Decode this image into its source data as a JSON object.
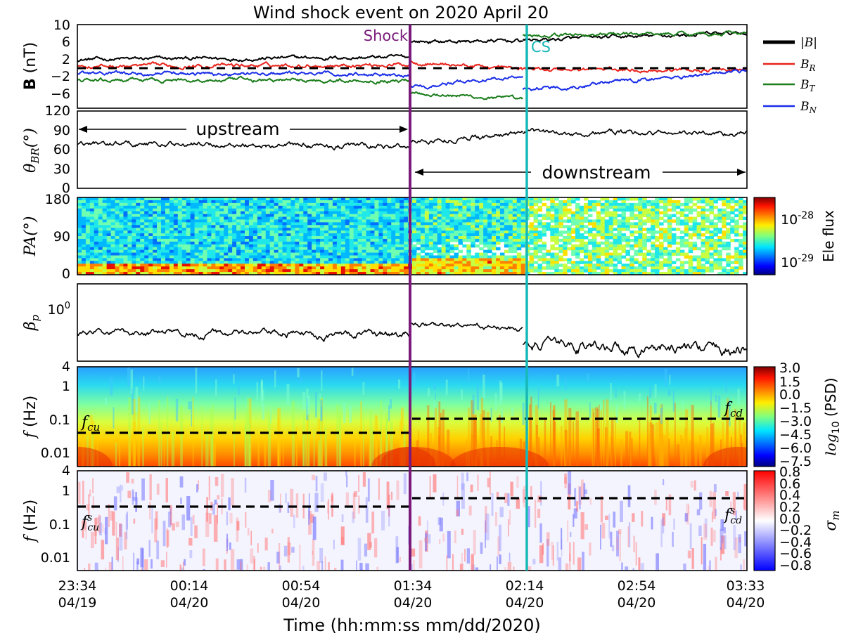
{
  "chart_data": {
    "title": "Wind shock event on 2020 April 20",
    "xlabel": "Time (hh:mm:ss mm/dd/2020)",
    "x_ticks": [
      {
        "time": "23:34",
        "date": "04/19"
      },
      {
        "time": "00:14",
        "date": "04/20"
      },
      {
        "time": "00:54",
        "date": "04/20"
      },
      {
        "time": "01:34",
        "date": "04/20"
      },
      {
        "time": "02:14",
        "date": "04/20"
      },
      {
        "time": "02:54",
        "date": "04/20"
      },
      {
        "time": "03:33",
        "date": "04/20"
      }
    ],
    "xlim_min_since_2334": [
      0,
      239
    ],
    "markers": [
      {
        "label": "Shock",
        "t_min": 119,
        "color": "#7a1a7a"
      },
      {
        "label": "CS",
        "t_min": 159,
        "color": "#17b8b8"
      }
    ],
    "panels": [
      {
        "id": "B",
        "type": "line",
        "ylabel": "B (nT)",
        "yticks": [
          "10",
          "6",
          "2",
          "−2",
          "−6"
        ],
        "yrange": [
          -8,
          10
        ],
        "legend": [
          "|B|",
          "B_R",
          "B_T",
          "B_N"
        ],
        "legend_placement": "right, outside",
        "zero_line": true,
        "series": [
          {
            "name": "|B|",
            "color": "#000000",
            "segments": [
              {
                "t": [
                  0,
                  119
                ],
                "level": [
                  2.5,
                  3.0
                ]
              },
              {
                "t": [
                  119,
                  159
                ],
                "level": [
                  6.3,
                  6.5
                ]
              },
              {
                "t": [
                  159,
                  239
                ],
                "level": [
                  6.6,
                  8.2
                ]
              }
            ]
          },
          {
            "name": "B_R",
            "color": "#e8231b",
            "segments": [
              {
                "t": [
                  0,
                  119
                ],
                "level": [
                  1.0,
                  1.4
                ]
              },
              {
                "t": [
                  119,
                  159
                ],
                "level": [
                  2.0,
                  0.4
                ]
              },
              {
                "t": [
                  159,
                  239
                ],
                "level": [
                  0.4,
                  0.2
                ]
              }
            ]
          },
          {
            "name": "B_T",
            "color": "#1b7d1b",
            "segments": [
              {
                "t": [
                  0,
                  119
                ],
                "level": [
                  -2.0,
                  -2.0
                ]
              },
              {
                "t": [
                  119,
                  159
                ],
                "level": [
                  -4.5,
                  -6.3
                ]
              },
              {
                "t": [
                  159,
                  239
                ],
                "level": [
                  7.6,
                  8.3
                ]
              }
            ]
          },
          {
            "name": "B_N",
            "color": "#1a2ee8",
            "segments": [
              {
                "t": [
                  0,
                  119
                ],
                "level": [
                  -0.5,
                  -0.7
                ]
              },
              {
                "t": [
                  119,
                  159
                ],
                "level": [
                  -3.5,
                  -1.0
                ]
              },
              {
                "t": [
                  159,
                  239
                ],
                "level": [
                  -4.0,
                  0.0
                ]
              }
            ]
          }
        ]
      },
      {
        "id": "theta_BR",
        "type": "line",
        "ylabel": "θ_BR(°)",
        "yticks": [
          "120",
          "90",
          "60",
          "30",
          "0"
        ],
        "yrange": [
          0,
          120
        ],
        "annotations": [
          "upstream",
          "downstream"
        ],
        "series": [
          {
            "name": "θ_BR",
            "color": "#000000",
            "segments": [
              {
                "t": [
                  0,
                  119
                ],
                "level": [
                  70,
                  65
                ]
              },
              {
                "t": [
                  119,
                  159
                ],
                "level": [
                  72,
                  86
                ]
              },
              {
                "t": [
                  159,
                  239
                ],
                "level": [
                  86,
                  86
                ]
              }
            ]
          }
        ]
      },
      {
        "id": "PA",
        "type": "heatmap",
        "ylabel": "PA(°)",
        "yticks": [
          "180",
          "90",
          "0"
        ],
        "colorbar_label": "Ele flux",
        "colorbar_ticks": [
          "10-28",
          "10-29"
        ]
      },
      {
        "id": "beta_p",
        "type": "line",
        "ylabel": "β_p",
        "yticks": [
          "10^0"
        ],
        "series": [
          {
            "name": "β_p",
            "color": "#000000",
            "segments": [
              {
                "t": [
                  0,
                  119
                ],
                "level": [
                  0.45,
                  0.42
                ]
              },
              {
                "t": [
                  119,
                  159
                ],
                "level": [
                  0.6,
                  0.5
                ]
              },
              {
                "t": [
                  159,
                  239
                ],
                "level": [
                  0.3,
                  0.25
                ]
              }
            ]
          }
        ]
      },
      {
        "id": "PSD",
        "type": "heatmap",
        "ylabel": "f (Hz)",
        "yticks": [
          "4",
          "1",
          "0.1",
          "0.01"
        ],
        "colorbar_label": "log10 (PSD)",
        "colorbar_ticks": [
          "3.0",
          "1.5",
          "0.0",
          "−1.5",
          "−3.0",
          "−4.5",
          "−6.0",
          "−7.5"
        ],
        "dashed_levels": [
          {
            "label": "f_cu",
            "t": [
              0,
              119
            ],
            "f_hz": 0.035
          },
          {
            "label": "f_cd",
            "t": [
              119,
              239
            ],
            "f_hz": 0.11
          }
        ]
      },
      {
        "id": "sigma_m",
        "type": "heatmap",
        "ylabel": "f (Hz)",
        "yticks": [
          "4",
          "1",
          "0.1",
          "0.01"
        ],
        "colorbar_label": "σ_m",
        "colorbar_ticks": [
          "0.8",
          "0.6",
          "0.4",
          "0.2",
          "0.0",
          "−0.2",
          "−0.4",
          "−0.6",
          "−0.8"
        ],
        "dashed_levels": [
          {
            "label": "f^s_cu",
            "t": [
              0,
              119
            ],
            "f_hz": 0.4
          },
          {
            "label": "f^s_cd",
            "t": [
              119,
              239
            ],
            "f_hz": 0.7
          }
        ]
      }
    ]
  },
  "labels": {
    "B_ylabel_bold": "B",
    "B_ylabel_unit": " (nT)",
    "legend_absB": "|B|",
    "legend_BR": "B",
    "legend_BR_sub": "R",
    "legend_BT": "B",
    "legend_BT_sub": "T",
    "legend_BN": "B",
    "legend_BN_sub": "N",
    "theta_symbol": "θ",
    "theta_sub": "BR",
    "theta_unit": "(°)",
    "pa_symbol": "PA",
    "pa_unit": "(°)",
    "beta_symbol": "β",
    "beta_sub": "p",
    "beta_tick_base": "10",
    "beta_tick_exp": "0",
    "freq_symbol": "f",
    "freq_unit": " (Hz)",
    "eleflux_tick1_base": "10",
    "eleflux_tick1_exp": "-28",
    "eleflux_tick2_base": "10",
    "eleflux_tick2_exp": "-29",
    "psd_label_log": "log",
    "psd_label_sub": "10",
    "psd_label_rest": " (PSD)",
    "sigma_symbol": "σ",
    "sigma_sub": "m",
    "fcu_f": "f",
    "fcu_sub": "cu",
    "fcd_f": "f",
    "fcd_sub": "cd",
    "fscu_f": "f",
    "fscu_sup": "s",
    "fscu_sub": "cu",
    "fscd_f": "f",
    "fscd_sup": "s",
    "fscd_sub": "cd"
  },
  "colors": {
    "shock": "#7a1a7a",
    "cs": "#17b8b8",
    "B_mag": "#000000",
    "B_R": "#e8231b",
    "B_T": "#1b7d1b",
    "B_N": "#1a2ee8"
  }
}
